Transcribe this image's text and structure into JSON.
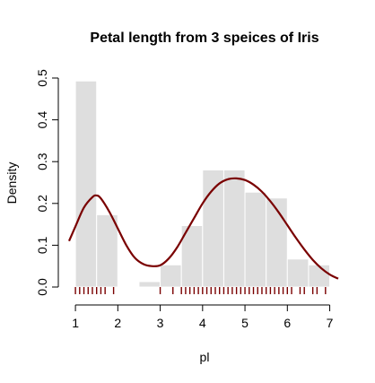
{
  "chart_data": {
    "type": "bar",
    "title": "Petal length from 3 speices of Iris",
    "xlabel": "pl",
    "ylabel": "Density",
    "xlim": [
      0.85,
      7.2
    ],
    "ylim": [
      0,
      0.5
    ],
    "x_ticks": [
      1,
      2,
      3,
      4,
      5,
      6,
      7
    ],
    "y_ticks": [
      0.0,
      0.1,
      0.2,
      0.3,
      0.4,
      0.5
    ],
    "y_tick_labels": [
      "0.0",
      "0.1",
      "0.2",
      "0.3",
      "0.4",
      "0.5"
    ],
    "histogram": {
      "bin_edges": [
        1.0,
        1.5,
        2.0,
        2.5,
        3.0,
        3.5,
        4.0,
        4.5,
        5.0,
        5.5,
        6.0,
        6.5,
        7.0
      ],
      "densities": [
        0.493,
        0.173,
        0.0,
        0.013,
        0.053,
        0.147,
        0.28,
        0.28,
        0.227,
        0.213,
        0.067,
        0.053
      ],
      "color": "#dedede"
    },
    "density_curve": {
      "color": "#7a0000",
      "x": [
        0.85,
        1.0,
        1.2,
        1.4,
        1.5,
        1.6,
        1.8,
        2.0,
        2.2,
        2.4,
        2.6,
        2.8,
        3.0,
        3.2,
        3.4,
        3.6,
        3.8,
        4.0,
        4.2,
        4.4,
        4.6,
        4.8,
        5.0,
        5.2,
        5.4,
        5.6,
        5.8,
        6.0,
        6.2,
        6.4,
        6.6,
        6.8,
        7.0,
        7.2
      ],
      "y": [
        0.11,
        0.145,
        0.19,
        0.215,
        0.219,
        0.212,
        0.18,
        0.14,
        0.1,
        0.07,
        0.055,
        0.05,
        0.052,
        0.068,
        0.095,
        0.13,
        0.165,
        0.2,
        0.228,
        0.248,
        0.258,
        0.26,
        0.256,
        0.245,
        0.228,
        0.205,
        0.178,
        0.148,
        0.118,
        0.09,
        0.065,
        0.045,
        0.03,
        0.02
      ]
    },
    "rug": {
      "color": "#7a0000",
      "x": [
        1.0,
        1.1,
        1.2,
        1.3,
        1.4,
        1.5,
        1.6,
        1.7,
        1.9,
        3.0,
        3.3,
        3.5,
        3.6,
        3.7,
        3.8,
        3.9,
        4.0,
        4.1,
        4.2,
        4.3,
        4.4,
        4.5,
        4.6,
        4.7,
        4.8,
        4.9,
        5.0,
        5.1,
        5.2,
        5.3,
        5.4,
        5.5,
        5.6,
        5.7,
        5.8,
        5.9,
        6.0,
        6.1,
        6.3,
        6.4,
        6.6,
        6.7,
        6.9
      ]
    }
  }
}
